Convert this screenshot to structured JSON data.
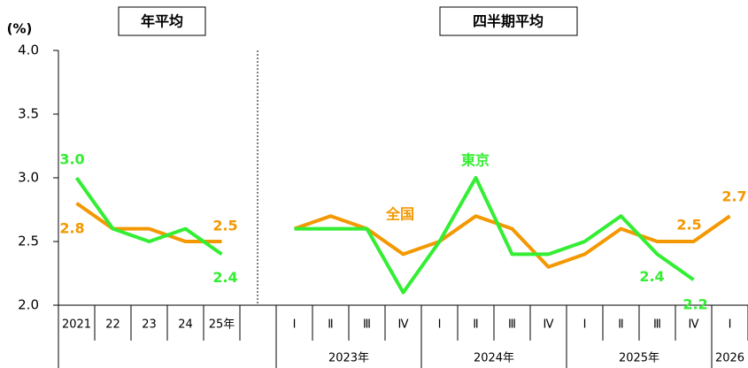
{
  "chart_data": {
    "type": "line",
    "unit_label": "(%)",
    "group_headers": [
      "年平均",
      "四半期平均"
    ],
    "categories": [
      "2021",
      "22",
      "23",
      "24",
      "25年",
      null,
      "Ⅰ",
      "Ⅱ",
      "Ⅲ",
      "Ⅳ",
      "Ⅰ",
      "Ⅱ",
      "Ⅲ",
      "Ⅳ",
      "Ⅰ",
      "Ⅱ",
      "Ⅲ",
      "Ⅳ",
      "Ⅰ"
    ],
    "year_labels": [
      "2023年",
      "2024年",
      "2025年",
      "2026"
    ],
    "series": [
      {
        "name": "全国",
        "color": "#f39800",
        "values": [
          2.8,
          2.6,
          2.6,
          2.5,
          2.5,
          null,
          2.6,
          2.7,
          2.6,
          2.4,
          2.5,
          2.7,
          2.6,
          2.3,
          2.4,
          2.6,
          2.5,
          2.5,
          2.7
        ],
        "value_labels": [
          "2.8",
          null,
          null,
          null,
          "2.5",
          null,
          null,
          null,
          null,
          null,
          null,
          null,
          null,
          null,
          null,
          null,
          null,
          "2.5",
          "2.7"
        ]
      },
      {
        "name": "東京",
        "color": "#33ee33",
        "values": [
          3.0,
          2.6,
          2.5,
          2.6,
          2.4,
          null,
          2.6,
          2.6,
          2.6,
          2.1,
          2.5,
          3.0,
          2.4,
          2.4,
          2.5,
          2.7,
          2.4,
          2.2,
          null
        ],
        "value_labels": [
          "3.0",
          null,
          null,
          null,
          "2.4",
          null,
          null,
          null,
          null,
          null,
          null,
          null,
          null,
          null,
          null,
          null,
          "2.4",
          "2.2",
          null
        ]
      }
    ],
    "ylim": [
      2.0,
      4.0
    ],
    "yticks": [
      {
        "value": 2.0,
        "label": "2.0"
      },
      {
        "value": 2.5,
        "label": "2.5"
      },
      {
        "value": 3.0,
        "label": "3.0"
      },
      {
        "value": 3.5,
        "label": "3.5"
      },
      {
        "value": 4.0,
        "label": "4.0"
      }
    ]
  }
}
